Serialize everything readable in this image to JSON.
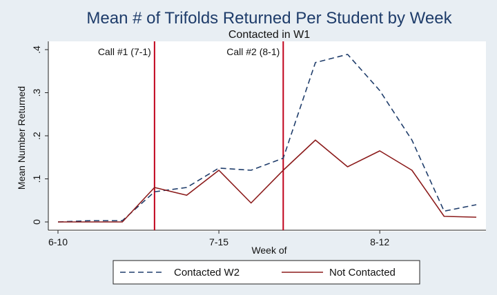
{
  "chart_data": {
    "type": "line",
    "title": "Mean # of Trifolds Returned Per Student by Week",
    "subtitle": "Contacted in W1",
    "xlabel": "Week of",
    "ylabel": "Mean Number Returned",
    "x": [
      0,
      1,
      2,
      3,
      4,
      5,
      6,
      7,
      8,
      9,
      10,
      11,
      12,
      13
    ],
    "xlim": [
      0,
      13
    ],
    "ylim": [
      0,
      0.4
    ],
    "x_ticks": [
      {
        "x": 0,
        "label": "6-10"
      },
      {
        "x": 5,
        "label": "7-15"
      },
      {
        "x": 10,
        "label": "8-12"
      }
    ],
    "y_ticks": [
      {
        "y": 0,
        "label": "0"
      },
      {
        "y": 0.1,
        "label": ".1"
      },
      {
        "y": 0.2,
        "label": ".2"
      },
      {
        "y": 0.3,
        "label": ".3"
      },
      {
        "y": 0.4,
        "label": ".4"
      }
    ],
    "vlines": [
      {
        "x": 3,
        "label": "Call #1 (7-1)",
        "color": "#c0001a"
      },
      {
        "x": 7,
        "label": "Call #2 (8-1)",
        "color": "#c0001a"
      }
    ],
    "series": [
      {
        "name": "Contacted W2",
        "color": "#1f3d6b",
        "dash": "dashed",
        "values": [
          0,
          0.003,
          0.003,
          0.07,
          0.08,
          0.125,
          0.12,
          0.148,
          0.37,
          0.389,
          0.305,
          0.19,
          0.025,
          0.04
        ]
      },
      {
        "name": "Not Contacted",
        "color": "#8b1a1a",
        "dash": "solid",
        "values": [
          0,
          0,
          0,
          0.08,
          0.062,
          0.12,
          0.044,
          0.12,
          0.19,
          0.128,
          0.165,
          0.12,
          0.013,
          0.011
        ]
      }
    ],
    "grid": false,
    "legend_position": "bottom"
  }
}
